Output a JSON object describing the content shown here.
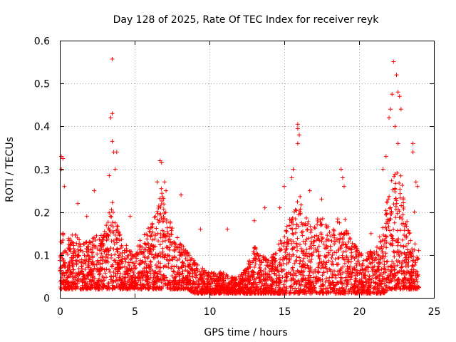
{
  "chart_data": {
    "type": "scatter",
    "title": "Day 128 of 2025, Rate Of TEC Index for receiver reyk",
    "xlabel": "GPS time / hours",
    "ylabel": "ROTI / TECUs",
    "xlim": [
      0,
      25
    ],
    "ylim": [
      0,
      0.6
    ],
    "xticks": [
      "0",
      "5",
      "10",
      "15",
      "20",
      "25"
    ],
    "yticks": [
      "0",
      "0.1",
      "0.2",
      "0.3",
      "0.4",
      "0.5",
      "0.6"
    ],
    "grid": true,
    "marker": "+",
    "color": "#ff0000",
    "envelope": {
      "x": [
        0,
        0.5,
        1,
        1.5,
        2,
        2.5,
        3,
        3.3,
        3.5,
        3.7,
        4,
        4.5,
        5,
        5.5,
        6,
        6.5,
        6.8,
        7,
        7.5,
        8,
        8.5,
        9,
        9.5,
        10,
        10.5,
        11,
        11.5,
        12,
        12.5,
        13,
        13.5,
        14,
        14.5,
        15,
        15.5,
        15.9,
        16.3,
        16.8,
        17.3,
        17.8,
        18.3,
        18.8,
        19.3,
        19.8,
        20.3,
        20.8,
        21.3,
        21.7,
        22.0,
        22.3,
        22.5,
        22.7,
        22.9,
        23.2,
        23.5,
        23.8,
        24.0
      ],
      "low": [
        0.02,
        0.02,
        0.02,
        0.02,
        0.02,
        0.02,
        0.02,
        0.02,
        0.02,
        0.02,
        0.02,
        0.02,
        0.02,
        0.02,
        0.02,
        0.02,
        0.02,
        0.02,
        0.02,
        0.02,
        0.02,
        0.01,
        0.01,
        0.01,
        0.01,
        0.01,
        0.01,
        0.01,
        0.01,
        0.01,
        0.01,
        0.01,
        0.01,
        0.01,
        0.01,
        0.01,
        0.01,
        0.01,
        0.01,
        0.01,
        0.01,
        0.01,
        0.01,
        0.01,
        0.01,
        0.01,
        0.01,
        0.01,
        0.02,
        0.02,
        0.02,
        0.02,
        0.02,
        0.02,
        0.02,
        0.02,
        0.02
      ],
      "high": [
        0.18,
        0.14,
        0.15,
        0.13,
        0.14,
        0.15,
        0.16,
        0.2,
        0.24,
        0.2,
        0.15,
        0.12,
        0.1,
        0.15,
        0.17,
        0.2,
        0.27,
        0.22,
        0.18,
        0.13,
        0.11,
        0.09,
        0.07,
        0.06,
        0.06,
        0.06,
        0.05,
        0.05,
        0.07,
        0.12,
        0.1,
        0.09,
        0.12,
        0.15,
        0.2,
        0.26,
        0.2,
        0.17,
        0.19,
        0.18,
        0.16,
        0.22,
        0.15,
        0.12,
        0.1,
        0.11,
        0.13,
        0.2,
        0.25,
        0.3,
        0.35,
        0.33,
        0.26,
        0.18,
        0.14,
        0.13,
        0.12
      ]
    },
    "outliers": [
      {
        "x": 0.1,
        "y": 0.33
      },
      {
        "x": 0.2,
        "y": 0.325
      },
      {
        "x": 0.1,
        "y": 0.3
      },
      {
        "x": 0.3,
        "y": 0.26
      },
      {
        "x": 1.2,
        "y": 0.22
      },
      {
        "x": 1.8,
        "y": 0.19
      },
      {
        "x": 2.3,
        "y": 0.25
      },
      {
        "x": 3.4,
        "y": 0.42
      },
      {
        "x": 3.5,
        "y": 0.43
      },
      {
        "x": 3.5,
        "y": 0.557
      },
      {
        "x": 3.5,
        "y": 0.365
      },
      {
        "x": 3.6,
        "y": 0.34
      },
      {
        "x": 3.8,
        "y": 0.34
      },
      {
        "x": 3.7,
        "y": 0.3
      },
      {
        "x": 3.3,
        "y": 0.285
      },
      {
        "x": 4.7,
        "y": 0.19
      },
      {
        "x": 6.5,
        "y": 0.27
      },
      {
        "x": 6.7,
        "y": 0.32
      },
      {
        "x": 6.8,
        "y": 0.315
      },
      {
        "x": 7.0,
        "y": 0.27
      },
      {
        "x": 7.1,
        "y": 0.25
      },
      {
        "x": 8.1,
        "y": 0.24
      },
      {
        "x": 9.4,
        "y": 0.16
      },
      {
        "x": 11.2,
        "y": 0.16
      },
      {
        "x": 13.0,
        "y": 0.18
      },
      {
        "x": 13.7,
        "y": 0.21
      },
      {
        "x": 14.7,
        "y": 0.21
      },
      {
        "x": 15.0,
        "y": 0.26
      },
      {
        "x": 15.5,
        "y": 0.28
      },
      {
        "x": 15.6,
        "y": 0.3
      },
      {
        "x": 15.9,
        "y": 0.405
      },
      {
        "x": 15.9,
        "y": 0.395
      },
      {
        "x": 16.0,
        "y": 0.38
      },
      {
        "x": 15.9,
        "y": 0.36
      },
      {
        "x": 16.7,
        "y": 0.25
      },
      {
        "x": 17.5,
        "y": 0.23
      },
      {
        "x": 18.8,
        "y": 0.3
      },
      {
        "x": 18.9,
        "y": 0.28
      },
      {
        "x": 19.0,
        "y": 0.26
      },
      {
        "x": 20.8,
        "y": 0.15
      },
      {
        "x": 21.6,
        "y": 0.3
      },
      {
        "x": 21.8,
        "y": 0.33
      },
      {
        "x": 22.0,
        "y": 0.42
      },
      {
        "x": 22.1,
        "y": 0.44
      },
      {
        "x": 22.2,
        "y": 0.475
      },
      {
        "x": 22.3,
        "y": 0.551
      },
      {
        "x": 22.5,
        "y": 0.52
      },
      {
        "x": 22.6,
        "y": 0.48
      },
      {
        "x": 22.7,
        "y": 0.47
      },
      {
        "x": 22.8,
        "y": 0.44
      },
      {
        "x": 22.4,
        "y": 0.4
      },
      {
        "x": 22.6,
        "y": 0.36
      },
      {
        "x": 23.6,
        "y": 0.36
      },
      {
        "x": 23.6,
        "y": 0.34
      },
      {
        "x": 23.8,
        "y": 0.27
      },
      {
        "x": 23.9,
        "y": 0.26
      },
      {
        "x": 23.7,
        "y": 0.2
      }
    ]
  }
}
